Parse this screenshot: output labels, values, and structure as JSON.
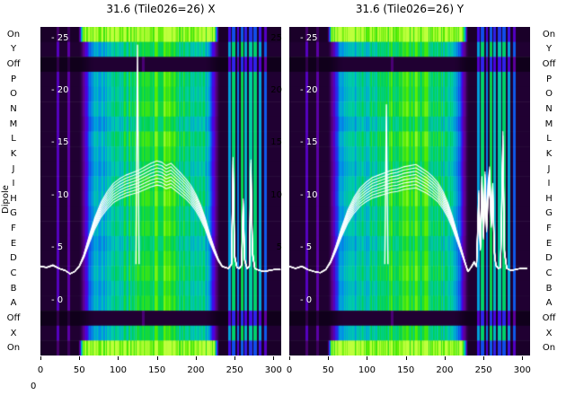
{
  "ylabel": "Dipole",
  "corner_label": "0",
  "ytick_labels_inside": [
    "- 25",
    "- 20",
    "- 15",
    "- 10",
    "- 5",
    "- 0"
  ],
  "ytick_labels_between": [
    "25",
    "20",
    "15",
    "10",
    "5"
  ],
  "xtick_labels": [
    "0",
    "50",
    "100",
    "150",
    "200",
    "250",
    "300"
  ],
  "chart_data": {
    "type": "heatmap",
    "xlim": [
      0,
      310
    ],
    "ylim": [
      -5.3,
      26.03
    ],
    "xticks": [
      0,
      50,
      100,
      150,
      200,
      250,
      300
    ],
    "yticks": [
      25,
      20,
      15,
      10,
      5,
      0
    ],
    "legend_position": "none",
    "grid": false,
    "curve_color": "#ffffff",
    "rows": [
      {
        "label": "On",
        "type": "on"
      },
      {
        "label": "Y",
        "type": "dipole"
      },
      {
        "label": "Off",
        "type": "off"
      },
      {
        "label": "P",
        "type": "dipole"
      },
      {
        "label": "O",
        "type": "dipole"
      },
      {
        "label": "N",
        "type": "dipole"
      },
      {
        "label": "M",
        "type": "dipole"
      },
      {
        "label": "L",
        "type": "dipole"
      },
      {
        "label": "K",
        "type": "dipole"
      },
      {
        "label": "J",
        "type": "dipole"
      },
      {
        "label": "I",
        "type": "dipole"
      },
      {
        "label": "H",
        "type": "dipole"
      },
      {
        "label": "G",
        "type": "dipole"
      },
      {
        "label": "F",
        "type": "dipole"
      },
      {
        "label": "E",
        "type": "dipole"
      },
      {
        "label": "D",
        "type": "dipole"
      },
      {
        "label": "C",
        "type": "dipole"
      },
      {
        "label": "B",
        "type": "dipole"
      },
      {
        "label": "A",
        "type": "dipole"
      },
      {
        "label": "Off",
        "type": "off"
      },
      {
        "label": "X",
        "type": "dipole"
      },
      {
        "label": "On",
        "type": "on"
      }
    ],
    "row_gains": [
      1,
      0.95,
      1,
      1.0,
      0.96,
      1.03,
      0.9,
      1.05,
      0.98,
      0.92,
      1.0,
      1.04,
      0.95,
      1.0,
      0.9,
      0.97,
      1.02,
      0.94,
      0.99,
      1,
      0.95,
      1
    ],
    "beam": {
      "rise_start": 48,
      "edge_width": 22,
      "fall_end": 232,
      "base": 0.07,
      "plateau": 0.42,
      "peak_extra": 0.3,
      "peak_center": 152,
      "peak_sigma": 45
    },
    "stripes": [
      {
        "x": 22,
        "v": 0.16,
        "w": 2
      },
      {
        "x": 36,
        "v": 0.13,
        "w": 2
      },
      {
        "x": 132,
        "v": 0.15,
        "w": 1.5
      },
      {
        "x": 243,
        "v": 0.45,
        "w": 2
      },
      {
        "x": 248,
        "v": 0.62,
        "w": 2
      },
      {
        "x": 254,
        "v": 0.4,
        "w": 1.5
      },
      {
        "x": 259,
        "v": 0.66,
        "w": 2
      },
      {
        "x": 264,
        "v": 0.5,
        "w": 2
      },
      {
        "x": 270,
        "v": 0.56,
        "w": 2
      },
      {
        "x": 276,
        "v": 0.62,
        "w": 2
      },
      {
        "x": 282,
        "v": 0.46,
        "w": 1.5
      },
      {
        "x": 289,
        "v": 0.34,
        "w": 1.5
      }
    ],
    "colormap": [
      [
        0.0,
        [
          10,
          0,
          18
        ]
      ],
      [
        0.08,
        [
          35,
          0,
          55
        ]
      ],
      [
        0.18,
        [
          95,
          0,
          150
        ]
      ],
      [
        0.28,
        [
          75,
          0,
          230
        ]
      ],
      [
        0.38,
        [
          20,
          70,
          235
        ]
      ],
      [
        0.5,
        [
          0,
          150,
          230
        ]
      ],
      [
        0.62,
        [
          0,
          205,
          170
        ]
      ],
      [
        0.72,
        [
          0,
          210,
          80
        ]
      ],
      [
        0.85,
        [
          80,
          235,
          0
        ]
      ],
      [
        1.0,
        [
          190,
          255,
          60
        ]
      ]
    ],
    "trace_offsets": [
      -1.4,
      -1.0,
      -0.6,
      -0.2,
      0.2,
      0.6,
      1.0,
      1.4
    ],
    "panels": [
      {
        "name": "X",
        "title": "31.6 (Tile026=26) X",
        "curve": [
          [
            0,
            3.2
          ],
          [
            8,
            3.1
          ],
          [
            16,
            3.3
          ],
          [
            24,
            3.0
          ],
          [
            32,
            2.8
          ],
          [
            38,
            2.5
          ],
          [
            44,
            2.7
          ],
          [
            50,
            3.2
          ],
          [
            56,
            4.2
          ],
          [
            63,
            5.8
          ],
          [
            70,
            7.3
          ],
          [
            78,
            8.6
          ],
          [
            86,
            9.5
          ],
          [
            94,
            10.2
          ],
          [
            102,
            10.6
          ],
          [
            110,
            10.9
          ],
          [
            118,
            11.1
          ],
          [
            126,
            11.3
          ],
          [
            134,
            11.6
          ],
          [
            142,
            11.9
          ],
          [
            150,
            12.1
          ],
          [
            156,
            12.0
          ],
          [
            162,
            11.7
          ],
          [
            168,
            11.9
          ],
          [
            174,
            11.5
          ],
          [
            180,
            11.1
          ],
          [
            187,
            10.6
          ],
          [
            194,
            10.0
          ],
          [
            200,
            9.3
          ],
          [
            206,
            8.4
          ],
          [
            212,
            7.3
          ],
          [
            218,
            5.9
          ],
          [
            224,
            4.7
          ],
          [
            229,
            3.8
          ],
          [
            234,
            3.2
          ],
          [
            238,
            3.1
          ],
          [
            242,
            3.0
          ],
          [
            246,
            3.4
          ],
          [
            248,
            12.4
          ],
          [
            250,
            4.2
          ],
          [
            253,
            3.1
          ],
          [
            256,
            3.0
          ],
          [
            259,
            3.3
          ],
          [
            261,
            8.9
          ],
          [
            263,
            3.8
          ],
          [
            266,
            3.0
          ],
          [
            269,
            3.2
          ],
          [
            271,
            12.2
          ],
          [
            273,
            4.5
          ],
          [
            276,
            3.0
          ],
          [
            279,
            2.9
          ],
          [
            283,
            2.8
          ],
          [
            288,
            2.7
          ],
          [
            294,
            2.8
          ],
          [
            301,
            2.9
          ],
          [
            309,
            2.9
          ]
        ],
        "spike": [
          [
            123,
            3.4
          ],
          [
            125,
            24.3
          ],
          [
            127,
            3.4
          ]
        ]
      },
      {
        "name": "Y",
        "title": "31.6 (Tile026=26) Y",
        "curve": [
          [
            0,
            3.2
          ],
          [
            8,
            3.0
          ],
          [
            16,
            3.2
          ],
          [
            24,
            2.9
          ],
          [
            32,
            2.7
          ],
          [
            40,
            2.6
          ],
          [
            47,
            2.9
          ],
          [
            53,
            3.6
          ],
          [
            60,
            4.9
          ],
          [
            67,
            6.4
          ],
          [
            75,
            7.9
          ],
          [
            83,
            9.0
          ],
          [
            91,
            9.8
          ],
          [
            99,
            10.3
          ],
          [
            107,
            10.7
          ],
          [
            115,
            10.9
          ],
          [
            123,
            11.1
          ],
          [
            131,
            11.3
          ],
          [
            139,
            11.4
          ],
          [
            147,
            11.6
          ],
          [
            155,
            11.7
          ],
          [
            163,
            11.8
          ],
          [
            170,
            11.5
          ],
          [
            177,
            11.2
          ],
          [
            184,
            10.8
          ],
          [
            191,
            10.3
          ],
          [
            198,
            9.5
          ],
          [
            204,
            8.6
          ],
          [
            210,
            7.4
          ],
          [
            216,
            6.0
          ],
          [
            221,
            4.8
          ],
          [
            226,
            3.6
          ],
          [
            230,
            2.7
          ],
          [
            234,
            3.1
          ],
          [
            238,
            3.6
          ],
          [
            241,
            3.2
          ],
          [
            244,
            9.6
          ],
          [
            246,
            5.0
          ],
          [
            248,
            10.8
          ],
          [
            250,
            6.2
          ],
          [
            252,
            11.2
          ],
          [
            254,
            7.0
          ],
          [
            256,
            10.4
          ],
          [
            258,
            11.6
          ],
          [
            260,
            7.5
          ],
          [
            262,
            10.2
          ],
          [
            264,
            4.6
          ],
          [
            266,
            3.3
          ],
          [
            269,
            3.0
          ],
          [
            272,
            3.1
          ],
          [
            275,
            14.6
          ],
          [
            277,
            4.6
          ],
          [
            280,
            3.0
          ],
          [
            285,
            2.8
          ],
          [
            291,
            2.9
          ],
          [
            298,
            3.0
          ],
          [
            306,
            3.0
          ]
        ],
        "spike": [
          [
            123,
            3.4
          ],
          [
            125,
            18.6
          ],
          [
            127,
            3.4
          ]
        ]
      }
    ]
  }
}
